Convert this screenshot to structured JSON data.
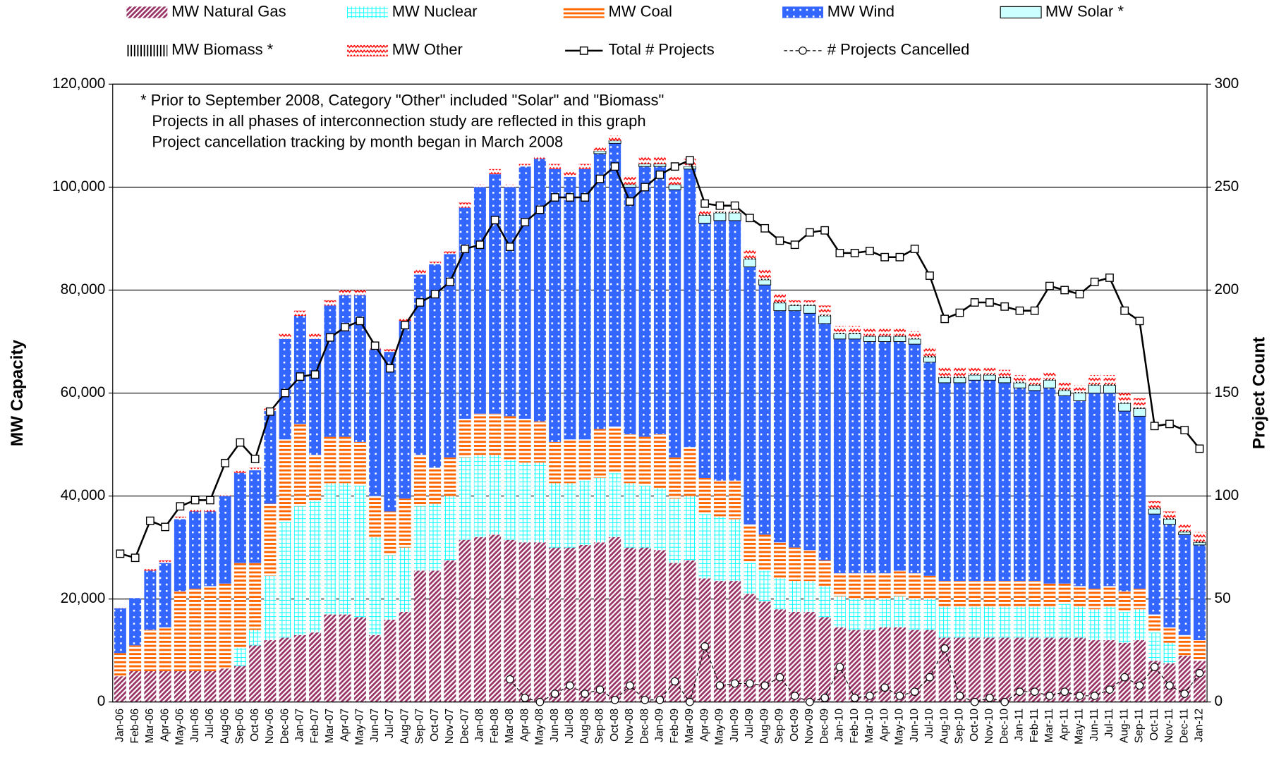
{
  "chart_data": {
    "type": "bar",
    "stacked": true,
    "annotations": [
      "* Prior to September 2008, Category \"Other\" included \"Solar\" and \"Biomass\"",
      "Projects in all phases of interconnection study are reflected in this graph",
      "Project cancellation tracking by month began in March 2008"
    ],
    "ylabel": "MW Capacity",
    "y2label": "Project Count",
    "categories": [
      "Jan-06",
      "Feb-06",
      "Mar-06",
      "Apr-06",
      "May-06",
      "Jun-06",
      "Jul-06",
      "Aug-06",
      "Sep-06",
      "Oct-06",
      "Nov-06",
      "Dec-06",
      "Jan-07",
      "Feb-07",
      "Mar-07",
      "Apr-07",
      "May-07",
      "Jun-07",
      "Jul-07",
      "Aug-07",
      "Sep-07",
      "Oct-07",
      "Nov-07",
      "Dec-07",
      "Jan-08",
      "Feb-08",
      "Mar-08",
      "Apr-08",
      "May-08",
      "Jun-08",
      "Jul-08",
      "Aug-08",
      "Sep-08",
      "Oct-08",
      "Nov-08",
      "Dec-08",
      "Jan-09",
      "Feb-09",
      "Mar-09",
      "Apr-09",
      "May-09",
      "Jun-09",
      "Jul-09",
      "Aug-09",
      "Sep-09",
      "Oct-09",
      "Nov-09",
      "Dec-09",
      "Jan-10",
      "Feb-10",
      "Mar-10",
      "Apr-10",
      "May-10",
      "Jun-10",
      "Jul-10",
      "Aug-10",
      "Sep-10",
      "Oct-10",
      "Nov-10",
      "Dec-10",
      "Jan-11",
      "Feb-11",
      "Mar-11",
      "Apr-11",
      "May-11",
      "Jun-11",
      "Jul-11",
      "Aug-11",
      "Sep-11",
      "Oct-11",
      "Nov-11",
      "Dec-11",
      "Jan-12"
    ],
    "ylim": [
      0,
      120000
    ],
    "yticks": [
      0,
      {
        "value": 20000,
        "label": "20,000"
      },
      {
        "value": 40000,
        "label": "40,000"
      },
      {
        "value": 60000,
        "label": "60,000"
      },
      {
        "value": 80000,
        "label": "80,000"
      },
      {
        "value": 100000,
        "label": "100,000"
      },
      {
        "value": 120000,
        "label": "120,000"
      }
    ],
    "y2lim": [
      0,
      300
    ],
    "y2ticks": [
      0,
      50,
      100,
      150,
      200,
      250,
      300
    ],
    "grid": true,
    "series": [
      {
        "name": "MW Natural Gas",
        "color": "#993366",
        "values": [
          5000,
          6000,
          6000,
          6000,
          6000,
          6000,
          6000,
          6500,
          7000,
          11000,
          12000,
          12500,
          13000,
          13500,
          17000,
          17000,
          16500,
          13000,
          16000,
          17500,
          25500,
          25500,
          27500,
          31500,
          32000,
          32500,
          31500,
          31000,
          31000,
          30000,
          30000,
          30500,
          31000,
          32000,
          30000,
          30000,
          29500,
          27000,
          27500,
          24000,
          23500,
          23500,
          21000,
          19500,
          18000,
          17500,
          17500,
          16500,
          14500,
          14000,
          14000,
          14500,
          14500,
          14000,
          14000,
          12500,
          12500,
          12500,
          12500,
          12500,
          12500,
          12500,
          12500,
          12500,
          12500,
          12000,
          12000,
          11500,
          12000,
          8000,
          7500,
          9000,
          8000
        ]
      },
      {
        "name": "MW Nuclear",
        "color": "#00ffff",
        "values": [
          0,
          0,
          0,
          0,
          0,
          0,
          0,
          0,
          3500,
          3000,
          12500,
          22500,
          25000,
          25500,
          25500,
          25500,
          25500,
          19000,
          12500,
          12500,
          12500,
          13000,
          12500,
          16000,
          16000,
          15500,
          15500,
          15500,
          15500,
          12500,
          12500,
          12500,
          12500,
          12500,
          12500,
          12000,
          12000,
          12500,
          12500,
          12500,
          12500,
          12000,
          6000,
          6000,
          6000,
          6000,
          6000,
          6000,
          6000,
          6000,
          6000,
          5500,
          6000,
          6000,
          6000,
          6000,
          6000,
          6000,
          6000,
          6000,
          6000,
          6000,
          6000,
          6500,
          6000,
          6000,
          6500,
          6000,
          6000,
          5500,
          4000,
          0,
          0
        ]
      },
      {
        "name": "MW Coal",
        "color": "#ff6600",
        "values": [
          4500,
          5000,
          8000,
          8500,
          15500,
          16000,
          16500,
          16500,
          16500,
          13000,
          14000,
          16000,
          16000,
          9000,
          9000,
          9000,
          8500,
          8000,
          8500,
          9500,
          10000,
          7000,
          7500,
          7500,
          8000,
          8000,
          8500,
          8500,
          8000,
          8000,
          8500,
          8000,
          9500,
          9000,
          9500,
          9500,
          10500,
          8000,
          9500,
          7000,
          7000,
          7500,
          7500,
          7000,
          7000,
          6500,
          6000,
          5000,
          4500,
          5000,
          5000,
          5000,
          5000,
          5000,
          4500,
          5000,
          5000,
          5000,
          5000,
          5000,
          5000,
          5000,
          4500,
          4000,
          4000,
          4000,
          4000,
          4000,
          4000,
          3500,
          3000,
          4000,
          4000
        ]
      },
      {
        "name": "MW Wind",
        "color": "#3366ff",
        "values": [
          8700,
          9200,
          11500,
          12500,
          14000,
          15000,
          14500,
          17000,
          17500,
          18000,
          18000,
          19500,
          21000,
          22500,
          25500,
          27500,
          28500,
          28500,
          31000,
          34500,
          35000,
          39500,
          39500,
          41000,
          44000,
          46500,
          44500,
          49000,
          51000,
          53000,
          51000,
          52500,
          53500,
          55000,
          48000,
          52500,
          52000,
          52000,
          54000,
          49500,
          50500,
          50500,
          50000,
          48500,
          45000,
          46000,
          46000,
          46000,
          45500,
          45500,
          45000,
          45000,
          44500,
          44500,
          41500,
          38500,
          38500,
          39000,
          39000,
          38500,
          37500,
          37000,
          38000,
          36500,
          36000,
          38000,
          37500,
          35000,
          33500,
          19500,
          20000,
          19500,
          18500
        ]
      },
      {
        "name": "MW Solar *",
        "color": "#ccffff",
        "values": [
          0,
          0,
          0,
          0,
          0,
          0,
          0,
          0,
          0,
          0,
          0,
          0,
          0,
          0,
          0,
          0,
          0,
          0,
          0,
          0,
          0,
          0,
          0,
          0,
          0,
          0,
          0,
          0,
          0,
          0,
          0,
          0,
          500,
          500,
          500,
          500,
          500,
          1000,
          500,
          1500,
          1500,
          1500,
          1500,
          1000,
          1500,
          1000,
          1500,
          1500,
          1000,
          1000,
          1000,
          1000,
          1000,
          1000,
          1000,
          1000,
          1000,
          1000,
          1000,
          1000,
          1000,
          1000,
          1500,
          1000,
          1500,
          1500,
          1500,
          1500,
          1500,
          1000,
          1000,
          500,
          500
        ]
      },
      {
        "name": "MW Biomass *",
        "color": "#000000",
        "values": [
          0,
          0,
          0,
          0,
          0,
          0,
          0,
          0,
          0,
          0,
          0,
          0,
          0,
          0,
          0,
          0,
          0,
          0,
          0,
          0,
          0,
          0,
          0,
          0,
          0,
          0,
          0,
          0,
          0,
          0,
          0,
          0,
          0,
          0,
          0,
          0,
          0,
          0,
          0,
          200,
          200,
          200,
          200,
          200,
          200,
          200,
          200,
          200,
          200,
          200,
          200,
          200,
          200,
          200,
          200,
          200,
          200,
          200,
          200,
          200,
          200,
          200,
          200,
          200,
          200,
          200,
          200,
          200,
          200,
          200,
          200,
          200,
          200
        ]
      },
      {
        "name": "MW Other",
        "color": "#ff0000",
        "values": [
          300,
          300,
          300,
          500,
          500,
          500,
          500,
          500,
          500,
          500,
          500,
          1000,
          1000,
          1000,
          1000,
          1000,
          1000,
          500,
          500,
          500,
          1000,
          500,
          500,
          1000,
          500,
          1000,
          500,
          500,
          500,
          1000,
          1000,
          1000,
          1000,
          1000,
          1500,
          1500,
          1500,
          1500,
          1500,
          800,
          300,
          300,
          1800,
          1800,
          1800,
          800,
          800,
          1800,
          1300,
          1300,
          1300,
          1300,
          1300,
          1300,
          1800,
          1800,
          1800,
          1300,
          1300,
          1300,
          1300,
          1300,
          1300,
          1300,
          1300,
          1800,
          1800,
          1800,
          1800,
          1300,
          1300,
          1300,
          1800
        ]
      },
      {
        "name": "Total # Projects",
        "type": "line",
        "axis": "y2",
        "color": "#000000",
        "values": [
          72,
          70,
          88,
          85,
          95,
          98,
          98,
          116,
          126,
          118,
          141,
          150,
          158,
          159,
          177,
          182,
          185,
          173,
          162,
          183,
          194,
          198,
          204,
          220,
          222,
          234,
          221,
          233,
          239,
          245,
          245,
          245,
          254,
          260,
          243,
          250,
          256,
          260,
          263,
          242,
          241,
          241,
          235,
          230,
          224,
          222,
          228,
          229,
          218,
          218,
          219,
          216,
          216,
          220,
          207,
          186,
          189,
          194,
          194,
          192,
          190,
          190,
          202,
          200,
          198,
          204,
          206,
          190,
          185,
          134,
          135,
          132,
          123
        ]
      },
      {
        "name": "# Projects Cancelled",
        "type": "line",
        "axis": "y2",
        "color": "#000000",
        "values": [
          null,
          null,
          null,
          null,
          null,
          null,
          null,
          null,
          null,
          null,
          null,
          null,
          null,
          null,
          null,
          null,
          null,
          null,
          null,
          null,
          null,
          null,
          null,
          null,
          null,
          null,
          11,
          2,
          0,
          4,
          8,
          4,
          6,
          1,
          8,
          1,
          1,
          10,
          0,
          27,
          8,
          9,
          9,
          8,
          12,
          3,
          0,
          2,
          17,
          2,
          3,
          7,
          3,
          5,
          12,
          26,
          3,
          0,
          2,
          0,
          5,
          5,
          3,
          5,
          3,
          3,
          6,
          12,
          8,
          17,
          8,
          4,
          14
        ]
      }
    ]
  }
}
